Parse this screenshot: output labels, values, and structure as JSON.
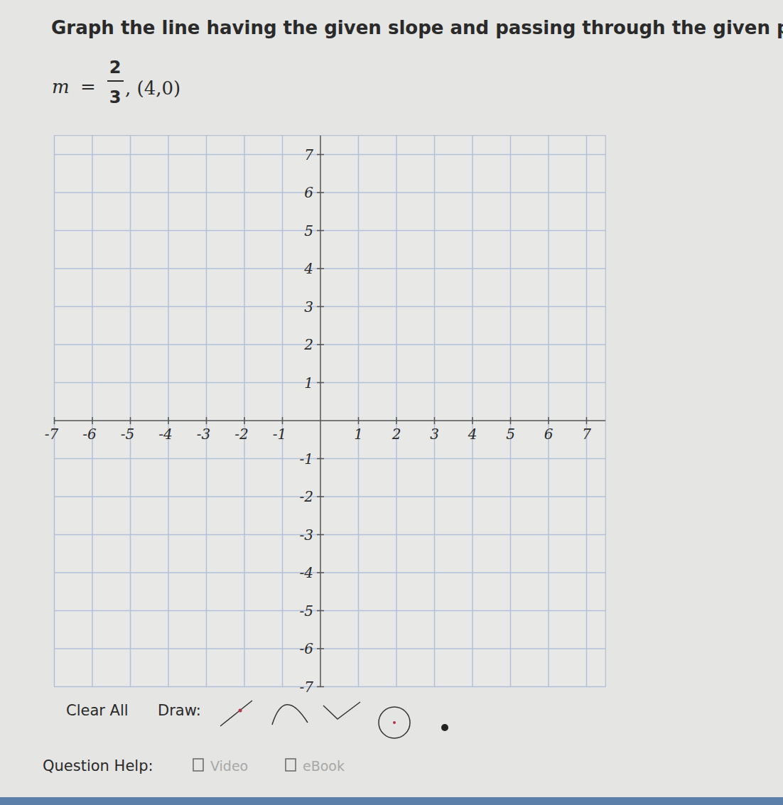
{
  "chart_data": {
    "type": "coordinate_plane",
    "title": "Graph the line having the given slope and passing through the given point.",
    "xlim": [
      -7,
      7.5
    ],
    "ylim": [
      -7,
      7.5
    ],
    "xticks": [
      -7,
      -6,
      -5,
      -4,
      -3,
      -2,
      -1,
      1,
      2,
      3,
      4,
      5,
      6,
      7
    ],
    "yticks": [
      -7,
      -6,
      -5,
      -4,
      -3,
      -2,
      -1,
      1,
      2,
      3,
      4,
      5,
      6,
      7
    ],
    "grid": true
  },
  "prompt": {
    "slope_symbol": "m",
    "equals": "=",
    "numerator": "2",
    "denominator": "3",
    "point": ", (4,0)"
  },
  "toolbar": {
    "clear": "Clear All",
    "draw": "Draw:"
  },
  "help": {
    "label": "Question Help:",
    "links": [
      "Video",
      "eBook"
    ]
  }
}
